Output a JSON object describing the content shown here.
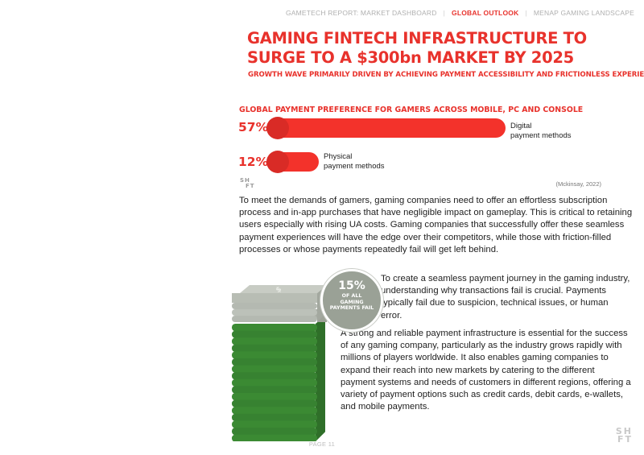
{
  "nav": {
    "items": [
      "GAMETECH REPORT: MARKET DASHBOARD",
      "GLOBAL OUTLOOK",
      "MENAP GAMING LANDSCAPE"
    ],
    "separator": "|",
    "active_color": "#e8322c"
  },
  "header": {
    "title": "GAMING FINTECH INFRASTRUCTURE TO SURGE TO A $300bn MARKET BY 2025",
    "subtitle": "GROWTH WAVE PRIMARILY DRIVEN BY ACHIEVING PAYMENT ACCESSIBILITY AND FRICTIONLESS EXPERIENCE"
  },
  "chart_data": {
    "type": "bar",
    "title": "GLOBAL PAYMENT PREFERENCE FOR GAMERS ACROSS MOBILE, PC AND CONSOLE",
    "categories": [
      "Digital payment methods",
      "Physical payment methods"
    ],
    "values": [
      57,
      12
    ],
    "value_labels": [
      "57%",
      "12%"
    ],
    "category_lines": [
      [
        "Digital",
        "payment methods"
      ],
      [
        "Physical",
        "payment methods"
      ]
    ],
    "source": "(Mckinsay, 2022)",
    "bar_color": "#f3322b",
    "cap_color": "#d92b26"
  },
  "body": {
    "paragraph1": "To meet the demands of gamers, gaming companies need to offer an effortless subscription process and in-app purchases that have negligible impact on gameplay. This is critical to retaining users especially with rising UA costs. Gaming companies that successfully offer these seamless payment experiences will have the edge over their competitors, while those with friction-filled processes or whose payments repeatedly fail will get left behind.",
    "paragraph2": "To create a seamless payment journey in the gaming industry, understanding why transactions fail is crucial. Payments typically fail due to suspicion, technical issues, or human error.",
    "paragraph3": "A strong and reliable payment infrastructure is essential for the success of any gaming company, particularly as the industry grows rapidly with millions of players worldwide. It also enables gaming companies to expand their reach into new markets by catering to the different payment systems and needs of customers in different regions, offering a variety of payment options such as credit cards, debit cards, e-wallets, and mobile payments."
  },
  "badge": {
    "value": "15%",
    "text": "OF ALL GAMING PAYMENTS FAIL",
    "fail_share": 0.15
  },
  "illustration": {
    "icon": "money-stack-icon",
    "gray_color": "#b4b9b1",
    "green_color": "#3b8a33",
    "bill_symbol": "$"
  },
  "footer": {
    "page": "PAGE 11",
    "logo": [
      "SH",
      "FT"
    ]
  }
}
